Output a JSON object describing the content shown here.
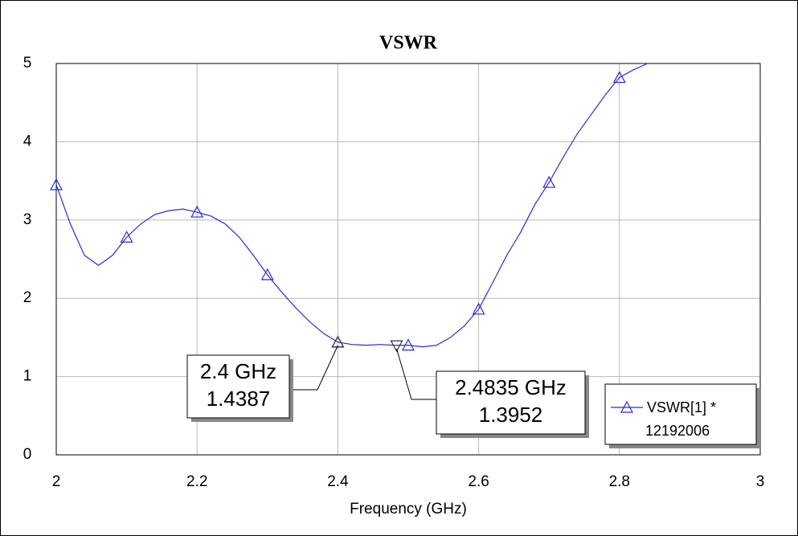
{
  "chart_data": {
    "type": "line",
    "title": "VSWR",
    "x_label": "Frequency (GHz)",
    "xlim": [
      2,
      3
    ],
    "xticks": [
      2,
      2.2,
      2.4,
      2.6,
      2.8,
      3
    ],
    "ylim": [
      0,
      5
    ],
    "yticks": [
      0,
      1,
      2,
      3,
      4,
      5
    ],
    "grid": true,
    "x": [
      2.0,
      2.02,
      2.04,
      2.06,
      2.08,
      2.1,
      2.12,
      2.14,
      2.16,
      2.18,
      2.2,
      2.22,
      2.24,
      2.26,
      2.28,
      2.3,
      2.32,
      2.34,
      2.36,
      2.38,
      2.4,
      2.42,
      2.44,
      2.46,
      2.48,
      2.5,
      2.52,
      2.54,
      2.56,
      2.58,
      2.6,
      2.62,
      2.64,
      2.66,
      2.68,
      2.7,
      2.72,
      2.74,
      2.76,
      2.78,
      2.8,
      2.82,
      2.84
    ],
    "series": [
      {
        "name": "VSWR[1] *",
        "legend_note": "12192006",
        "color": "#2b2bd0",
        "values": [
          3.45,
          2.95,
          2.55,
          2.42,
          2.55,
          2.78,
          2.95,
          3.07,
          3.12,
          3.14,
          3.1,
          3.05,
          2.95,
          2.78,
          2.55,
          2.3,
          2.08,
          1.88,
          1.7,
          1.55,
          1.44,
          1.41,
          1.4,
          1.41,
          1.4,
          1.4,
          1.38,
          1.4,
          1.5,
          1.65,
          1.86,
          2.2,
          2.55,
          2.85,
          3.2,
          3.48,
          3.8,
          4.1,
          4.35,
          4.6,
          4.82,
          4.92,
          5.0
        ]
      }
    ],
    "markers": [
      {
        "x": 2.4,
        "x_label": "2.4 GHz",
        "y": 1.4387
      },
      {
        "x": 2.4835,
        "x_label": "2.4835 GHz",
        "y": 1.3952
      }
    ]
  }
}
